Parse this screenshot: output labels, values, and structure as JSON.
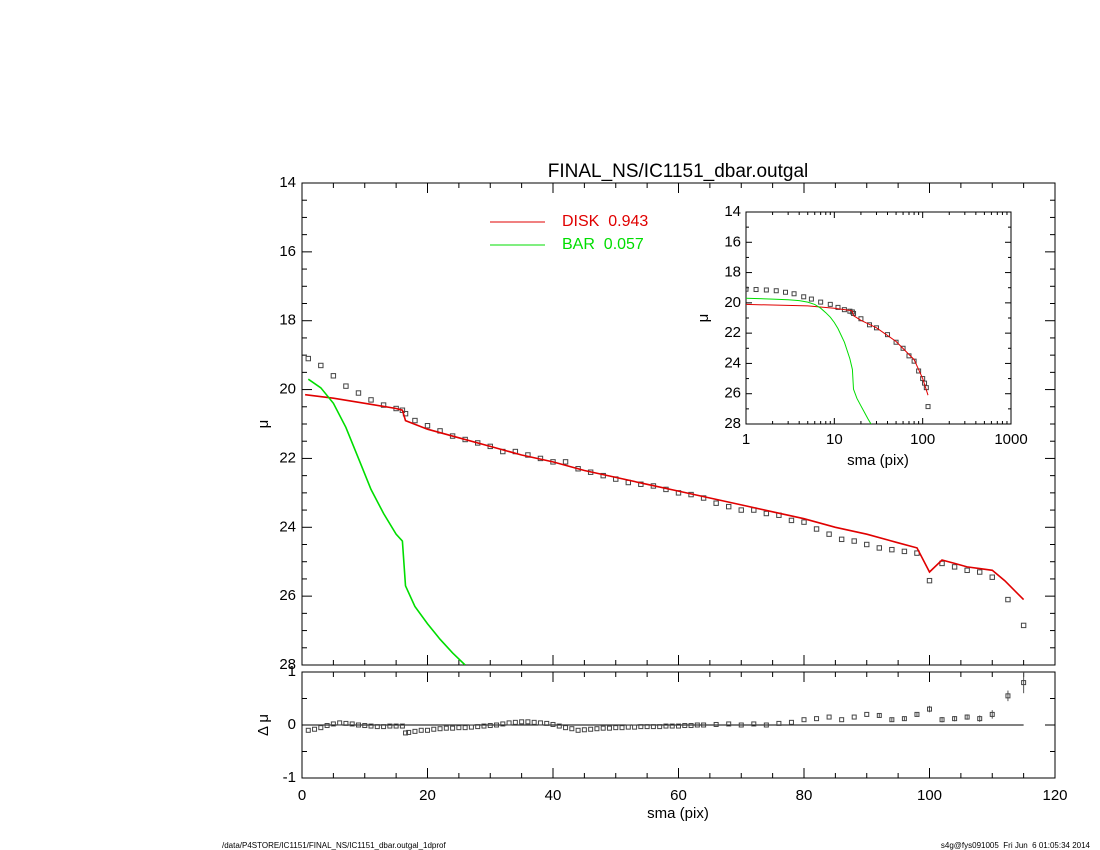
{
  "chart_data": [
    {
      "id": "main",
      "type": "scatter",
      "title": "FINAL_NS/IC1151_dbar.outgal",
      "xlabel": "",
      "ylabel": "μ",
      "xlim": [
        0,
        120
      ],
      "ylim": [
        28,
        14
      ],
      "y_inverted": true,
      "yticks": [
        "14",
        "16",
        "18",
        "20",
        "22",
        "24",
        "26",
        "28"
      ],
      "xticks": [],
      "legend": [
        {
          "name": "DISK",
          "value": "0.943",
          "label": "DISK  0.943",
          "color": "#e00000"
        },
        {
          "name": "BAR",
          "value": "0.057",
          "label": "BAR  0.057",
          "color": "#00dd00"
        }
      ],
      "series": [
        {
          "name": "data",
          "style": "squares",
          "color": "#000000",
          "x": [
            1,
            3,
            5,
            7,
            9,
            11,
            13,
            15,
            16,
            16.5,
            18,
            20,
            22,
            24,
            26,
            28,
            30,
            32,
            34,
            36,
            38,
            40,
            42,
            44,
            46,
            48,
            50,
            52,
            54,
            56,
            58,
            60,
            62,
            64,
            66,
            68,
            70,
            72,
            74,
            76,
            78,
            80,
            82,
            84,
            86,
            88,
            90,
            92,
            94,
            96,
            98,
            100,
            102,
            104,
            106,
            108,
            110,
            112.5,
            115
          ],
          "y": [
            19.1,
            19.3,
            19.6,
            19.9,
            20.1,
            20.3,
            20.45,
            20.55,
            20.6,
            20.7,
            20.9,
            21.05,
            21.2,
            21.35,
            21.45,
            21.55,
            21.65,
            21.8,
            21.8,
            21.9,
            22.0,
            22.1,
            22.1,
            22.3,
            22.4,
            22.5,
            22.6,
            22.7,
            22.75,
            22.8,
            22.9,
            23.0,
            23.05,
            23.15,
            23.3,
            23.4,
            23.5,
            23.5,
            23.6,
            23.65,
            23.8,
            23.85,
            24.05,
            24.2,
            24.35,
            24.4,
            24.5,
            24.6,
            24.65,
            24.7,
            24.75,
            25.55,
            25.05,
            25.15,
            25.25,
            25.3,
            25.45,
            26.1,
            26.85
          ]
        },
        {
          "name": "DISK",
          "style": "line",
          "color": "#e00000",
          "x": [
            0.5,
            5,
            10,
            15,
            16,
            16.5,
            20,
            25,
            30,
            35,
            40,
            45,
            50,
            55,
            60,
            65,
            70,
            75,
            80,
            85,
            90,
            95,
            98,
            100,
            102,
            104,
            106,
            108,
            110,
            112,
            115
          ],
          "y": [
            20.15,
            20.25,
            20.4,
            20.55,
            20.6,
            20.9,
            21.15,
            21.4,
            21.65,
            21.9,
            22.1,
            22.35,
            22.55,
            22.75,
            22.95,
            23.15,
            23.35,
            23.55,
            23.75,
            24.0,
            24.2,
            24.45,
            24.6,
            25.3,
            24.95,
            25.05,
            25.15,
            25.2,
            25.25,
            25.55,
            26.1
          ]
        },
        {
          "name": "BAR",
          "style": "line",
          "color": "#00dd00",
          "x": [
            1,
            3,
            5,
            7,
            9,
            11,
            13,
            15,
            16,
            16.5,
            18,
            20,
            22,
            24,
            26
          ],
          "y": [
            19.7,
            19.95,
            20.4,
            21.1,
            22.0,
            22.9,
            23.6,
            24.2,
            24.4,
            25.7,
            26.3,
            26.8,
            27.25,
            27.65,
            28.0
          ]
        }
      ]
    },
    {
      "id": "residual",
      "type": "scatter",
      "xlabel": "sma (pix)",
      "ylabel": "Δ μ",
      "xlim": [
        0,
        120
      ],
      "ylim": [
        -1,
        1
      ],
      "xticks": [
        "0",
        "20",
        "40",
        "60",
        "80",
        "100",
        "120"
      ],
      "yticks": [
        "-1",
        "0",
        "1"
      ],
      "zero_line": true,
      "series": [
        {
          "name": "residuals",
          "style": "squares",
          "color": "#000000",
          "x": [
            1,
            2,
            3,
            4,
            5,
            6,
            7,
            8,
            9,
            10,
            11,
            12,
            13,
            14,
            15,
            16,
            16.5,
            17,
            18,
            19,
            20,
            21,
            22,
            23,
            24,
            25,
            26,
            27,
            28,
            29,
            30,
            31,
            32,
            33,
            34,
            35,
            36,
            37,
            38,
            39,
            40,
            41,
            42,
            43,
            44,
            45,
            46,
            47,
            48,
            49,
            50,
            51,
            52,
            53,
            54,
            55,
            56,
            57,
            58,
            59,
            60,
            61,
            62,
            63,
            64,
            66,
            68,
            70,
            72,
            74,
            76,
            78,
            80,
            82,
            84,
            86,
            88,
            90,
            92,
            94,
            96,
            98,
            100,
            102,
            104,
            106,
            108,
            110,
            112.5,
            115
          ],
          "y": [
            -0.1,
            -0.08,
            -0.05,
            -0.01,
            0.02,
            0.04,
            0.03,
            0.02,
            0.0,
            -0.01,
            -0.02,
            -0.03,
            -0.03,
            -0.02,
            -0.02,
            -0.02,
            -0.15,
            -0.14,
            -0.12,
            -0.1,
            -0.1,
            -0.08,
            -0.07,
            -0.06,
            -0.06,
            -0.05,
            -0.05,
            -0.04,
            -0.03,
            -0.02,
            -0.01,
            0.0,
            0.02,
            0.04,
            0.05,
            0.06,
            0.06,
            0.05,
            0.04,
            0.03,
            0.01,
            -0.02,
            -0.05,
            -0.07,
            -0.1,
            -0.09,
            -0.08,
            -0.07,
            -0.06,
            -0.06,
            -0.05,
            -0.05,
            -0.04,
            -0.04,
            -0.03,
            -0.03,
            -0.03,
            -0.03,
            -0.02,
            -0.02,
            -0.02,
            -0.01,
            -0.01,
            0.0,
            0.0,
            0.01,
            0.02,
            0.0,
            0.02,
            0.0,
            0.03,
            0.05,
            0.1,
            0.12,
            0.15,
            0.1,
            0.15,
            0.2,
            0.18,
            0.1,
            0.12,
            0.2,
            0.3,
            0.1,
            0.12,
            0.15,
            0.12,
            0.2,
            0.55,
            0.8
          ],
          "errors": [
            0.01,
            0.01,
            0.01,
            0.01,
            0.01,
            0.01,
            0.01,
            0.01,
            0.01,
            0.01,
            0.01,
            0.01,
            0.01,
            0.01,
            0.01,
            0.01,
            0.01,
            0.01,
            0.01,
            0.01,
            0.01,
            0.01,
            0.01,
            0.01,
            0.01,
            0.01,
            0.01,
            0.01,
            0.01,
            0.01,
            0.01,
            0.01,
            0.01,
            0.01,
            0.01,
            0.01,
            0.01,
            0.01,
            0.01,
            0.01,
            0.01,
            0.01,
            0.01,
            0.01,
            0.01,
            0.01,
            0.01,
            0.01,
            0.01,
            0.01,
            0.01,
            0.01,
            0.01,
            0.01,
            0.01,
            0.01,
            0.01,
            0.01,
            0.01,
            0.01,
            0.01,
            0.01,
            0.01,
            0.01,
            0.01,
            0.01,
            0.02,
            0.02,
            0.02,
            0.02,
            0.02,
            0.02,
            0.02,
            0.03,
            0.03,
            0.03,
            0.03,
            0.03,
            0.04,
            0.04,
            0.04,
            0.04,
            0.06,
            0.05,
            0.05,
            0.05,
            0.06,
            0.08,
            0.1,
            0.2
          ]
        }
      ]
    },
    {
      "id": "inset",
      "type": "scatter",
      "xlabel": "sma (pix)",
      "ylabel": "μ",
      "xscale": "log",
      "xlim": [
        1,
        1000
      ],
      "ylim": [
        28,
        14
      ],
      "y_inverted": true,
      "xticks": [
        "1",
        "10",
        "100",
        "1000"
      ],
      "yticks": [
        "14",
        "16",
        "18",
        "20",
        "22",
        "24",
        "26",
        "28"
      ],
      "series": [
        {
          "name": "data",
          "style": "squares",
          "color": "#000000",
          "x": [
            1,
            1.3,
            1.7,
            2.2,
            2.8,
            3.5,
            4.5,
            5.5,
            7,
            9,
            11,
            13,
            15,
            16,
            16.5,
            20,
            25,
            30,
            40,
            50,
            60,
            70,
            80,
            90,
            100,
            105,
            110,
            115
          ],
          "y": [
            19.1,
            19.12,
            19.15,
            19.2,
            19.3,
            19.4,
            19.6,
            19.75,
            19.95,
            20.1,
            20.3,
            20.45,
            20.55,
            20.6,
            20.7,
            21.05,
            21.45,
            21.65,
            22.1,
            22.6,
            23.0,
            23.5,
            23.85,
            24.5,
            25.0,
            25.3,
            25.6,
            26.85
          ]
        },
        {
          "name": "DISK",
          "style": "line",
          "color": "#e00000",
          "x": [
            1,
            5,
            10,
            15,
            16,
            16.5,
            20,
            30,
            50,
            80,
            100,
            115
          ],
          "y": [
            20.1,
            20.2,
            20.35,
            20.5,
            20.55,
            20.85,
            21.15,
            21.65,
            22.55,
            23.75,
            25.0,
            26.1
          ]
        },
        {
          "name": "BAR",
          "style": "line",
          "color": "#00dd00",
          "x": [
            1,
            2,
            3,
            4,
            5,
            6,
            7,
            8,
            9,
            10,
            11,
            13,
            15,
            16,
            16.5,
            18,
            20,
            22,
            24,
            26
          ],
          "y": [
            19.7,
            19.75,
            19.8,
            19.85,
            19.95,
            20.1,
            20.35,
            20.65,
            20.95,
            21.3,
            21.7,
            22.6,
            23.7,
            24.4,
            25.7,
            26.3,
            26.8,
            27.25,
            27.65,
            28.0
          ]
        }
      ]
    }
  ],
  "footer": {
    "left": "/data/P4STORE/IC1151/FINAL_NS/IC1151_dbar.outgal_1dprof",
    "right": "s4g@fys091005  Fri Jun  6 01:05:34 2014"
  }
}
